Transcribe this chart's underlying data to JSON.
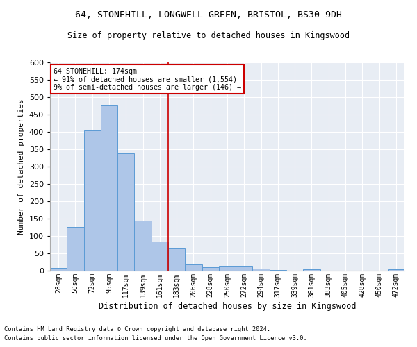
{
  "title1": "64, STONEHILL, LONGWELL GREEN, BRISTOL, BS30 9DH",
  "title2": "Size of property relative to detached houses in Kingswood",
  "xlabel": "Distribution of detached houses by size in Kingswood",
  "ylabel": "Number of detached properties",
  "categories": [
    "28sqm",
    "50sqm",
    "72sqm",
    "95sqm",
    "117sqm",
    "139sqm",
    "161sqm",
    "183sqm",
    "206sqm",
    "228sqm",
    "250sqm",
    "272sqm",
    "294sqm",
    "317sqm",
    "339sqm",
    "361sqm",
    "383sqm",
    "405sqm",
    "428sqm",
    "450sqm",
    "472sqm"
  ],
  "values": [
    8,
    127,
    404,
    476,
    339,
    145,
    85,
    65,
    18,
    10,
    13,
    13,
    6,
    2,
    0,
    4,
    0,
    0,
    0,
    0,
    4
  ],
  "bar_color": "#aec6e8",
  "bar_edge_color": "#5b9bd5",
  "bg_color": "#e8edf4",
  "vline_color": "#cc0000",
  "annotation_line1": "64 STONEHILL: 174sqm",
  "annotation_line2": "← 91% of detached houses are smaller (1,554)",
  "annotation_line3": "9% of semi-detached houses are larger (146) →",
  "annotation_box_color": "#ffffff",
  "annotation_box_edge": "#cc0000",
  "footnote1": "Contains HM Land Registry data © Crown copyright and database right 2024.",
  "footnote2": "Contains public sector information licensed under the Open Government Licence v3.0.",
  "ylim": [
    0,
    600
  ],
  "yticks": [
    0,
    50,
    100,
    150,
    200,
    250,
    300,
    350,
    400,
    450,
    500,
    550,
    600
  ],
  "vline_pos": 6.5
}
